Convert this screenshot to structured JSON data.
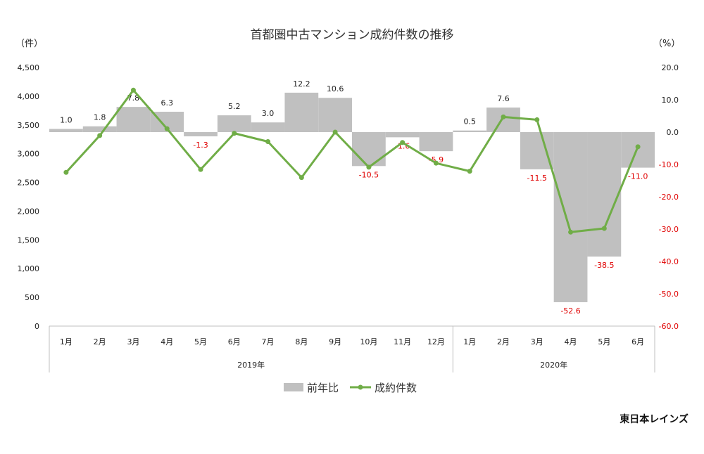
{
  "chart_data": {
    "type": "bar+line",
    "title": "首都圏中古マンション成約件数の推移",
    "left_unit": "（件）",
    "right_unit": "（%）",
    "left_ylim": [
      0,
      4500
    ],
    "left_ticks": [
      "0",
      "500",
      "1,000",
      "1,500",
      "2,000",
      "2,500",
      "3,000",
      "3,500",
      "4,000",
      "4,500"
    ],
    "left_tick_values": [
      0,
      500,
      1000,
      1500,
      2000,
      2500,
      3000,
      3500,
      4000,
      4500
    ],
    "right_ylim": [
      -60,
      20
    ],
    "right_ticks": [
      "20.0",
      "10.0",
      "0.0",
      "-10.0",
      "-20.0",
      "-30.0",
      "-40.0",
      "-50.0",
      "-60.0"
    ],
    "right_tick_values": [
      20,
      10,
      0,
      -10,
      -20,
      -30,
      -40,
      -50,
      -60
    ],
    "categories": [
      "1月",
      "2月",
      "3月",
      "4月",
      "5月",
      "6月",
      "7月",
      "8月",
      "9月",
      "10月",
      "11月",
      "12月",
      "1月",
      "2月",
      "3月",
      "4月",
      "5月",
      "6月"
    ],
    "years": [
      {
        "label": "2019年",
        "start": 0,
        "end": 11
      },
      {
        "label": "2020年",
        "start": 12,
        "end": 17
      }
    ],
    "series": [
      {
        "name": "前年比",
        "type": "bar",
        "axis": "right",
        "color": "#c0c0c0",
        "values": [
          1.0,
          1.8,
          7.8,
          6.3,
          -1.3,
          5.2,
          3.0,
          12.2,
          10.6,
          -10.5,
          -1.6,
          -5.9,
          0.5,
          7.6,
          -11.5,
          -52.6,
          -38.5,
          -11.0
        ],
        "labels": [
          "1.0",
          "1.8",
          "7.8",
          "6.3",
          "-1.3",
          "5.2",
          "3.0",
          "12.2",
          "10.6",
          "-10.5",
          "-1.6",
          "-5.9",
          "0.5",
          "7.6",
          "-11.5",
          "-52.6",
          "-38.5",
          "-11.0"
        ]
      },
      {
        "name": "成約件数",
        "type": "line",
        "axis": "left",
        "color": "#70ad47",
        "values": [
          2675,
          3315,
          4105,
          3435,
          2725,
          3355,
          3210,
          2585,
          3375,
          2765,
          3195,
          2835,
          2695,
          3640,
          3590,
          1635,
          1700,
          3120
        ]
      }
    ],
    "grid": false,
    "legend": "bottom",
    "source": "東日本レインズ"
  }
}
